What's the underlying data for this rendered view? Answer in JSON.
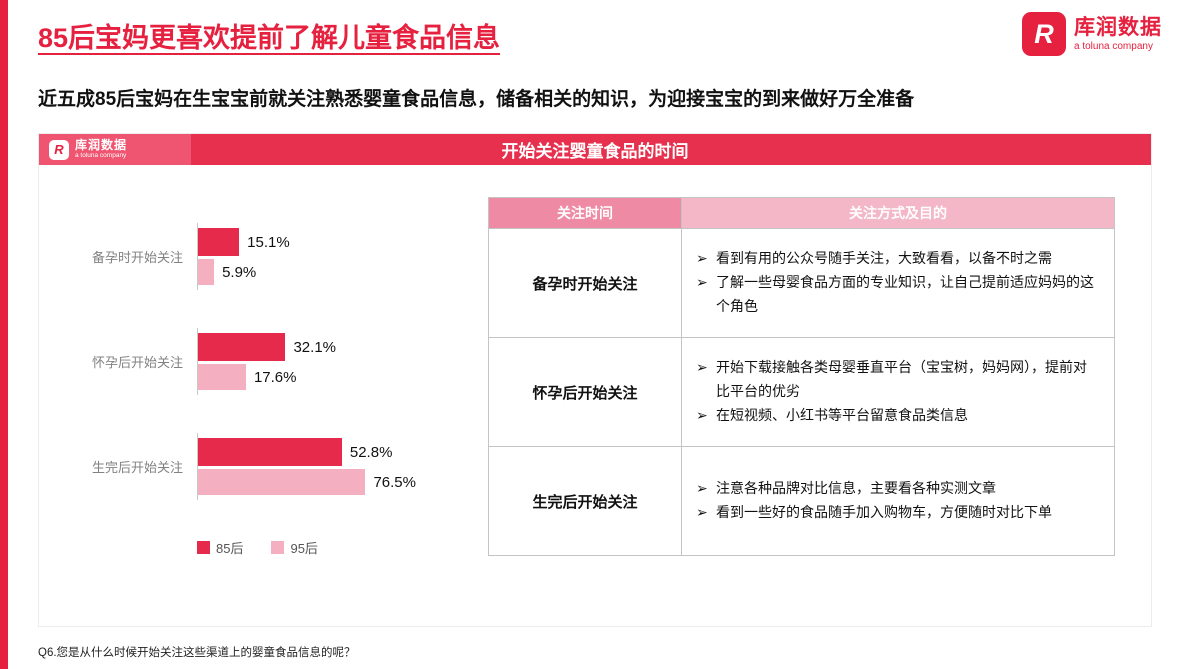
{
  "page": {
    "title": "85后宝妈更喜欢提前了解儿童食品信息",
    "subtitle": "近五成85后宝妈在生宝宝前就关注熟悉婴童食品信息，储备相关的知识，为迎接宝宝的到来做好万全准备",
    "footnote": "Q6.您是从什么时候开始关注这些渠道上的婴童食品信息的呢？"
  },
  "logo": {
    "name": "库润数据",
    "tagline": "a toluna company",
    "letter": "R"
  },
  "panel": {
    "header_title": "开始关注婴童食品的时间"
  },
  "colors": {
    "accent_red": "#e6213f",
    "panel_header_red": "#e6304e",
    "series_85": "#e62a4c",
    "series_95": "#f4afc0",
    "table_header_col1": "#ee8aa4",
    "table_header_col2": "#f3b7c7"
  },
  "chart_data": {
    "type": "bar",
    "orientation": "horizontal",
    "title": "开始关注婴童食品的时间",
    "categories": [
      "备孕时开始关注",
      "怀孕后开始关注",
      "生完后开始关注"
    ],
    "series": [
      {
        "name": "85后",
        "values": [
          15.1,
          32.1,
          52.8
        ]
      },
      {
        "name": "95后",
        "values": [
          5.9,
          17.6,
          76.5
        ]
      }
    ],
    "value_labels": [
      [
        "15.1%",
        "5.9%"
      ],
      [
        "32.1%",
        "17.6%"
      ],
      [
        "52.8%",
        "76.5%"
      ]
    ],
    "xlim": [
      0,
      80
    ],
    "legend": [
      "85后",
      "95后"
    ],
    "legend_position": "bottom",
    "grid": false
  },
  "table": {
    "bullet_char": "➢",
    "headers": [
      "关注时间",
      "关注方式及目的"
    ],
    "rows": [
      {
        "time": "备孕时开始关注",
        "bullets": [
          "看到有用的公众号随手关注，大致看看，以备不时之需",
          "了解一些母婴食品方面的专业知识，让自己提前适应妈妈的这个角色"
        ]
      },
      {
        "time": "怀孕后开始关注",
        "bullets": [
          "开始下载接触各类母婴垂直平台（宝宝树，妈妈网），提前对比平台的优劣",
          "在短视频、小红书等平台留意食品类信息"
        ]
      },
      {
        "time": "生完后开始关注",
        "bullets": [
          "注意各种品牌对比信息，主要看各种实测文章",
          "看到一些好的食品随手加入购物车，方便随时对比下单"
        ]
      }
    ]
  }
}
